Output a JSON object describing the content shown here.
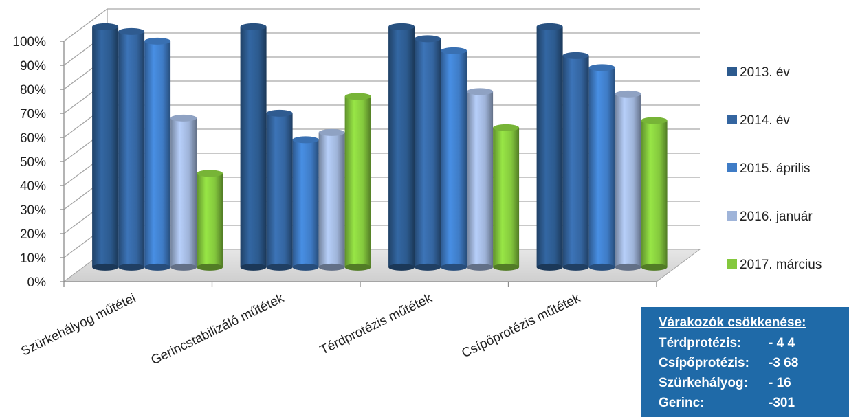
{
  "chart_data": {
    "type": "bar",
    "categories": [
      "Szürkehályog műtétei",
      "Gerincstabilizáló műtétek",
      "Térdprotézis műtétek",
      "Csípőprotézis műtétek"
    ],
    "series": [
      {
        "name": "2013. év",
        "color": "#2c5a8e",
        "values": [
          100,
          100,
          100,
          100
        ]
      },
      {
        "name": "2014. év",
        "color": "#3465a0",
        "values": [
          98,
          64,
          95,
          88
        ]
      },
      {
        "name": "2015. április",
        "color": "#3f7cc6",
        "values": [
          94,
          53,
          90,
          83
        ]
      },
      {
        "name": "2016. január",
        "color": "#9fb4d9",
        "values": [
          62,
          56,
          73,
          72
        ]
      },
      {
        "name": "2017. március",
        "color": "#84c83d",
        "values": [
          39,
          71,
          58,
          61
        ]
      }
    ],
    "yticks": [
      "0%",
      "10%",
      "20%",
      "30%",
      "40%",
      "50%",
      "60%",
      "70%",
      "80%",
      "90%",
      "100%"
    ],
    "ylim": [
      0,
      100
    ],
    "grid": true,
    "legend_position": "right"
  },
  "infobox": {
    "title": "Várakozók csökkenése:",
    "rows": [
      {
        "label": "Térdprotézis:",
        "value": "- 4 4"
      },
      {
        "label": "Csípőprotézis:",
        "value": "-3 68"
      },
      {
        "label": "Szürkehályog:",
        "value": "- 16"
      },
      {
        "label": "Gerinc:",
        "value": "-301"
      }
    ]
  }
}
